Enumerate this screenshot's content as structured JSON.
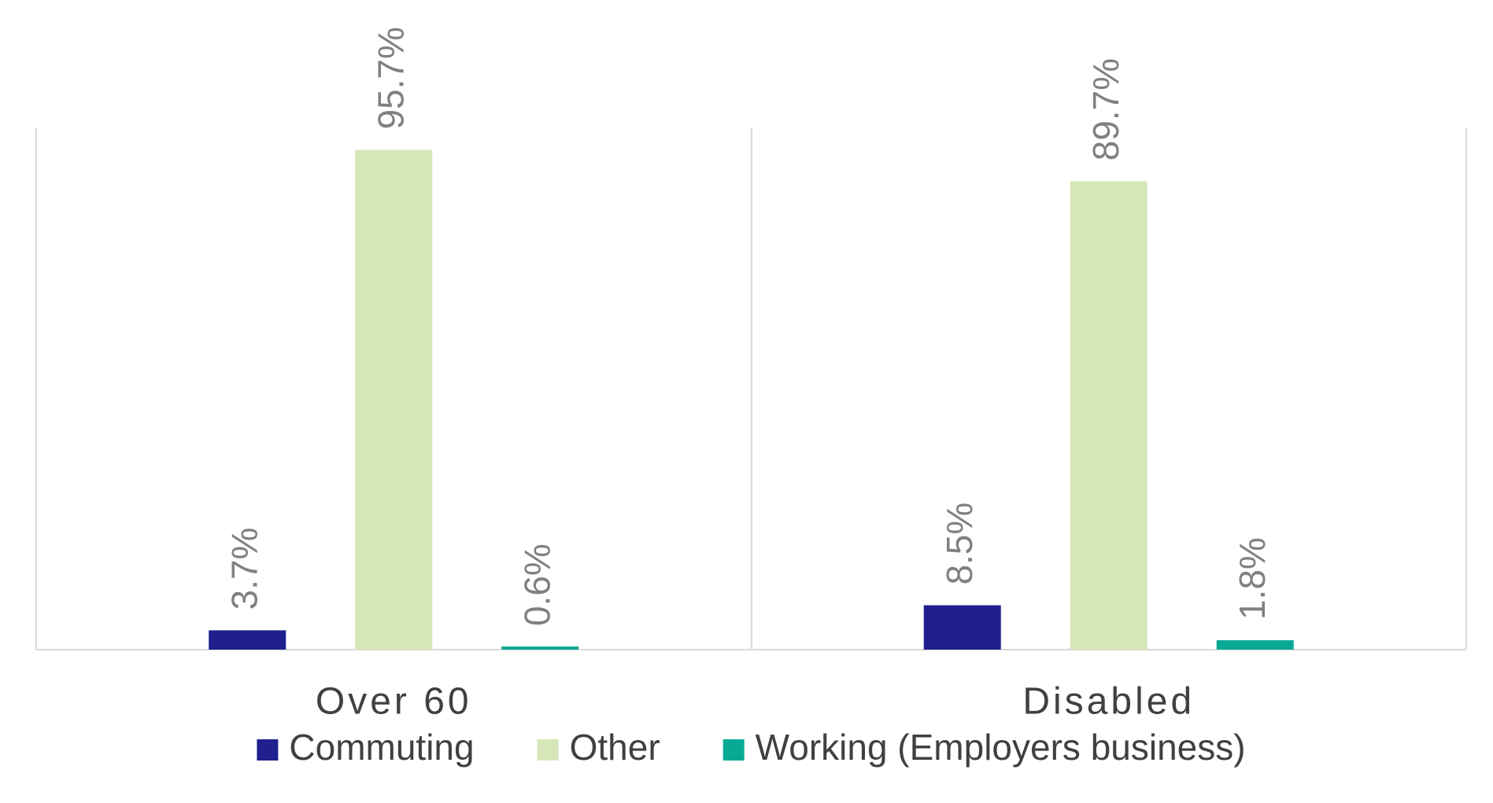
{
  "chart_data": {
    "type": "bar",
    "categories": [
      "Over 60",
      "Disabled"
    ],
    "series": [
      {
        "name": "Commuting",
        "color": "#1f1f8f",
        "values": [
          3.7,
          8.5
        ],
        "value_labels": [
          "3.7%",
          "8.5%"
        ]
      },
      {
        "name": "Other",
        "color": "#d6e6b9",
        "values": [
          95.7,
          89.7
        ],
        "value_labels": [
          "95.7%",
          "89.7%"
        ]
      },
      {
        "name": "Working (Employers business)",
        "color": "#0aa995",
        "values": [
          0.6,
          1.8
        ],
        "value_labels": [
          "0.6%",
          "1.8%"
        ]
      }
    ],
    "ylim": [
      0,
      100
    ],
    "legend": "bottom"
  }
}
